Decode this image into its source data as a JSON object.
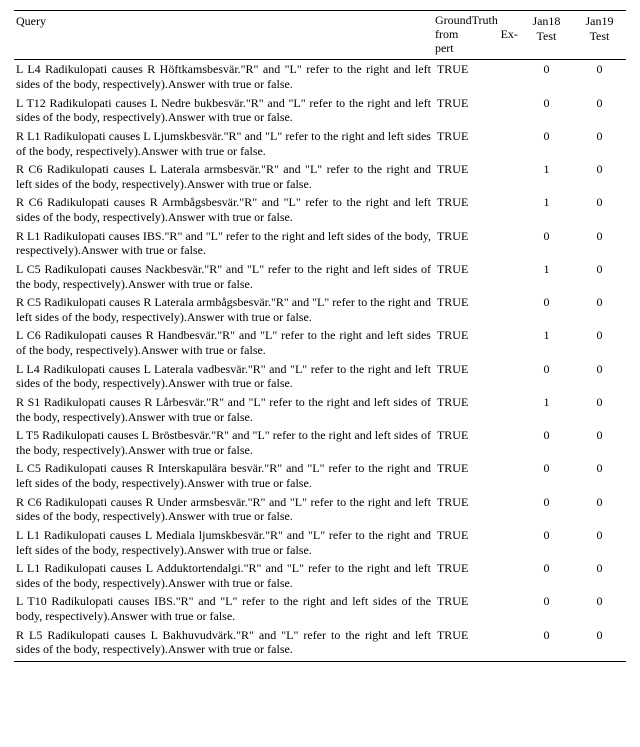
{
  "columns": {
    "query": "Query",
    "groundtruth_line1": "GroundTruth",
    "groundtruth_line2_a": "from",
    "groundtruth_line2_b": "Ex-",
    "groundtruth_line3": "pert",
    "jan18": "Jan18 Test",
    "jan19": "Jan19 Test"
  },
  "rows": [
    {
      "query": "L L4 Radikulopati causes R Höftkamsbesvär.\"R\" and \"L\" refer to the right and left sides of the body, respectively).Answer with true or false.",
      "gt": "TRUE",
      "j18": "0",
      "j19": "0"
    },
    {
      "query": "L T12 Radikulopati causes L Nedre bukbesvär.\"R\" and \"L\" refer to the right and left sides of the body, respectively).Answer with true or false.",
      "gt": "TRUE",
      "j18": "0",
      "j19": "0"
    },
    {
      "query": "R L1 Radikulopati causes L Ljumskbesvär.\"R\" and \"L\" refer to the right and left sides of the body, respectively).Answer with true or false.",
      "gt": "TRUE",
      "j18": "0",
      "j19": "0"
    },
    {
      "query": "R C6 Radikulopati causes L Laterala armsbesvär.\"R\" and \"L\" refer to the right and left sides of the body, respectively).Answer with true or false.",
      "gt": "TRUE",
      "j18": "1",
      "j19": "0"
    },
    {
      "query": "R C6 Radikulopati causes R Armbågsbesvär.\"R\" and \"L\" refer to the right and left sides of the body, respectively).Answer with true or false.",
      "gt": "TRUE",
      "j18": "1",
      "j19": "0"
    },
    {
      "query": "R L1 Radikulopati causes IBS.\"R\" and \"L\" refer to the right and left sides of the body, respectively).Answer with true or false.",
      "gt": "TRUE",
      "j18": "0",
      "j19": "0"
    },
    {
      "query": "L C5 Radikulopati causes Nackbesvär.\"R\" and \"L\" refer to the right and left sides of the body, respectively).Answer with true or false.",
      "gt": "TRUE",
      "j18": "1",
      "j19": "0"
    },
    {
      "query": "R C5 Radikulopati causes R Laterala armbågsbesvär.\"R\" and \"L\" refer to the right and left sides of the body, respectively).Answer with true or false.",
      "gt": "TRUE",
      "j18": "0",
      "j19": "0"
    },
    {
      "query": "L C6 Radikulopati causes R Handbesvär.\"R\" and \"L\" refer to the right and left sides of the body, respectively).Answer with true or false.",
      "gt": "TRUE",
      "j18": "1",
      "j19": "0"
    },
    {
      "query": "L L4 Radikulopati causes L Laterala vadbesvär.\"R\" and \"L\" refer to the right and left sides of the body, respectively).Answer with true or false.",
      "gt": "TRUE",
      "j18": "0",
      "j19": "0"
    },
    {
      "query": "R S1 Radikulopati causes R Lårbesvär.\"R\" and \"L\" refer to the right and left sides of the body, respectively).Answer with true or false.",
      "gt": "TRUE",
      "j18": "1",
      "j19": "0"
    },
    {
      "query": "L T5 Radikulopati causes L Bröstbesvär.\"R\" and \"L\" refer to the right and left sides of the body, respectively).Answer with true or false.",
      "gt": "TRUE",
      "j18": "0",
      "j19": "0"
    },
    {
      "query": "L C5 Radikulopati causes R Interskapulära besvär.\"R\" and \"L\" refer to the right and left sides of the body, respectively).Answer with true or false.",
      "gt": "TRUE",
      "j18": "0",
      "j19": "0"
    },
    {
      "query": "R C6 Radikulopati causes R Under armsbesvär.\"R\" and \"L\" refer to the right and left sides of the body, respectively).Answer with true or false.",
      "gt": "TRUE",
      "j18": "0",
      "j19": "0"
    },
    {
      "query": "L L1 Radikulopati causes L Mediala ljumskbesvär.\"R\" and \"L\" refer to the right and left sides of the body, respectively).Answer with true or false.",
      "gt": "TRUE",
      "j18": "0",
      "j19": "0"
    },
    {
      "query": "L L1 Radikulopati causes L Adduktortendalgi.\"R\" and \"L\" refer to the right and left sides of the body, respectively).Answer with true or false.",
      "gt": "TRUE",
      "j18": "0",
      "j19": "0"
    },
    {
      "query": "L T10 Radikulopati causes IBS.\"R\" and \"L\" refer to the right and left sides of the body, respectively).Answer with true or false.",
      "gt": "TRUE",
      "j18": "0",
      "j19": "0"
    },
    {
      "query": "R L5 Radikulopati causes L Bakhuvudvärk.\"R\" and \"L\" refer to the right and left sides of the body, respectively).Answer with true or false.",
      "gt": "TRUE",
      "j18": "0",
      "j19": "0"
    }
  ],
  "style": {
    "font_family": "Times New Roman",
    "font_size_pt": 9,
    "text_color": "#000000",
    "background_color": "#ffffff",
    "rule_color": "#000000"
  }
}
